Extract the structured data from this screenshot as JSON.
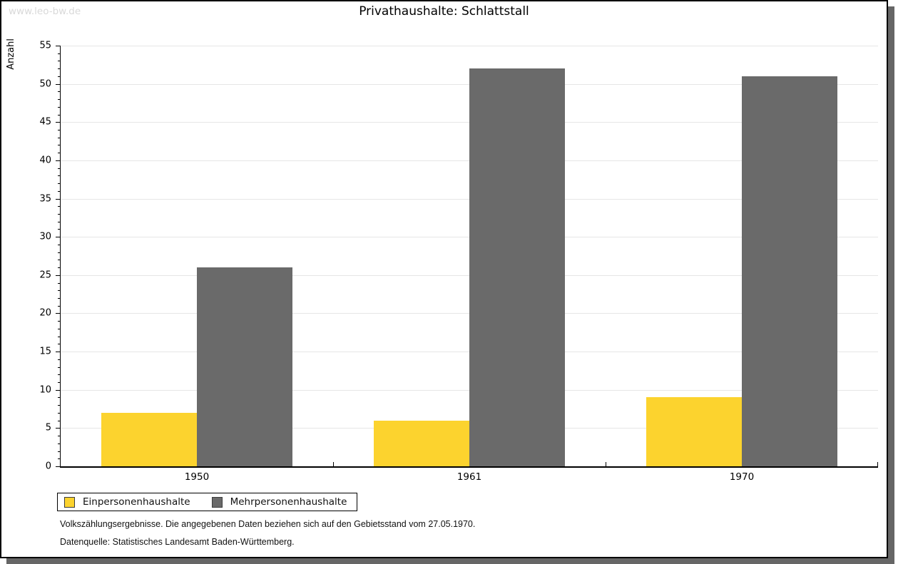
{
  "watermark": "www.leo-bw.de",
  "title": "Privathaushalte: Schlattstall",
  "chart_data": {
    "type": "bar",
    "title": "Privathaushalte: Schlattstall",
    "categories": [
      "1950",
      "1961",
      "1970"
    ],
    "series": [
      {
        "name": "Einpersonenhaushalte",
        "color": "#FCD32E",
        "values": [
          7,
          6,
          9
        ]
      },
      {
        "name": "Mehrpersonenhaushalte",
        "color": "#6A6A6A",
        "values": [
          26,
          52,
          51
        ]
      }
    ],
    "xlabel": "",
    "ylabel": "Anzahl",
    "ylim": [
      0,
      55
    ],
    "y_major_step": 5,
    "y_minor_step": 1,
    "grid": true,
    "legend_position": "bottom-left"
  },
  "footer": {
    "line1": "Volkszählungsergebnisse. Die angegebenen Daten beziehen sich auf den Gebietsstand vom 27.05.1970.",
    "line2": "Datenquelle: Statistisches Landesamt Baden-Württemberg."
  },
  "colors": {
    "bar_yellow": "#FCD32E",
    "bar_gray": "#6A6A6A",
    "gridline": "#E6E6E6",
    "axis": "#000000",
    "shadow": "#666666",
    "watermark": "#D9D9D9",
    "background": "#FFFFFF"
  }
}
